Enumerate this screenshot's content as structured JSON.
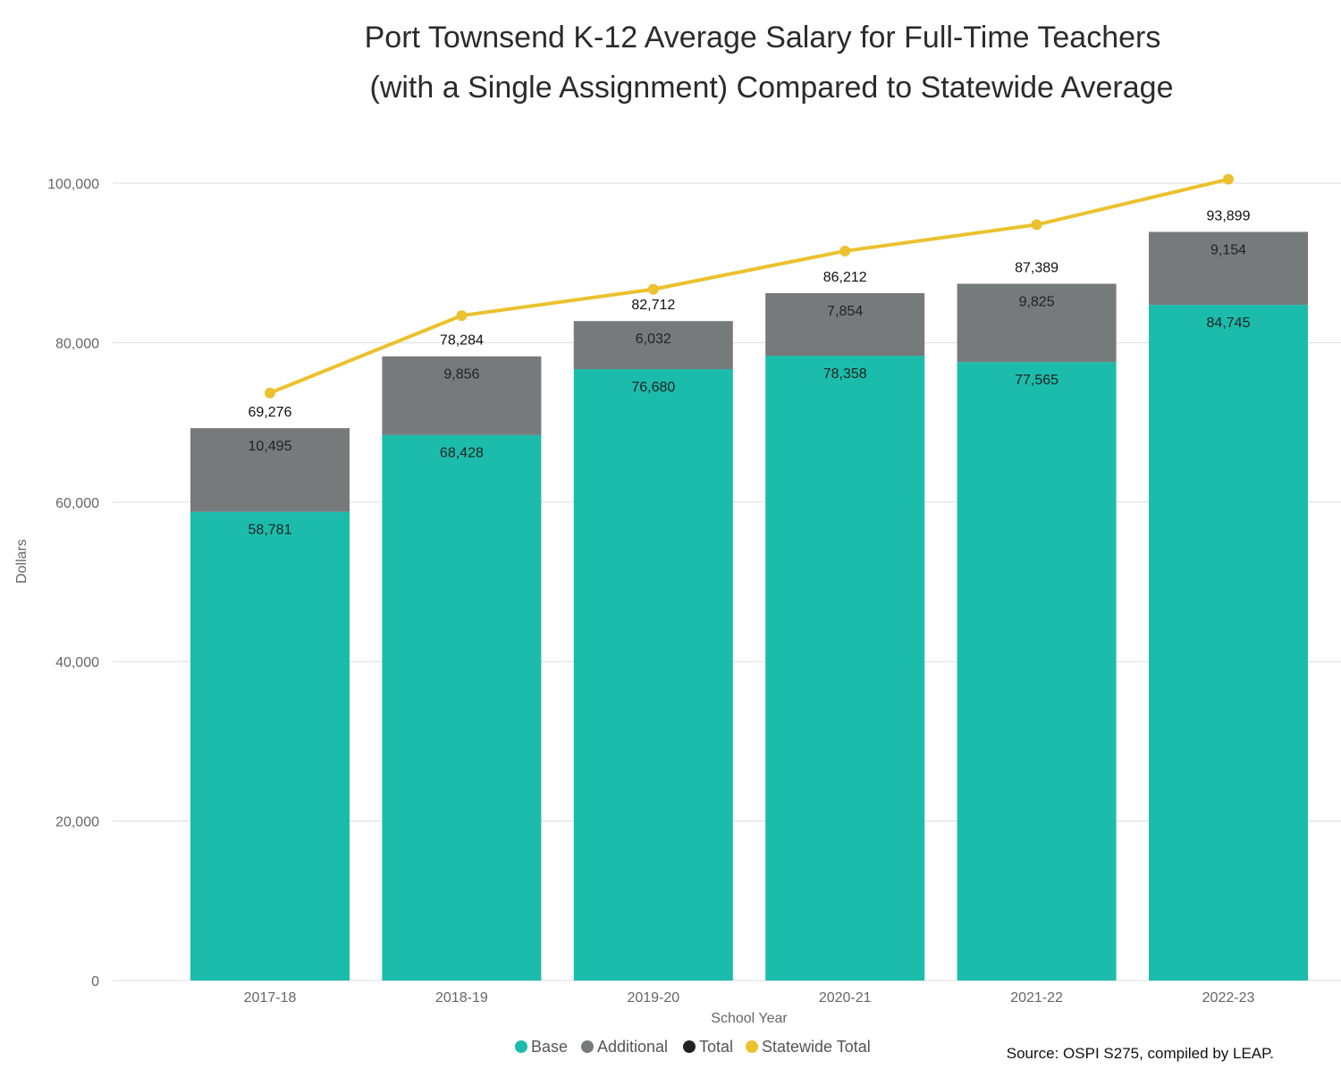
{
  "chart_data": {
    "type": "bar",
    "stacked": true,
    "title_line1": "Port Townsend K-12 Average Salary for Full-Time Teachers",
    "title_line2": "(with a Single Assignment) Compared to Statewide Average",
    "xlabel": "School Year",
    "ylabel": "Dollars",
    "ylim": [
      0,
      100000
    ],
    "yticks": [
      0,
      20000,
      40000,
      60000,
      80000,
      100000
    ],
    "ytick_labels": [
      "0",
      "20,000",
      "40,000",
      "60,000",
      "80,000",
      "100,000"
    ],
    "grid": true,
    "categories": [
      "2017-18",
      "2018-19",
      "2019-20",
      "2020-21",
      "2021-22",
      "2022-23"
    ],
    "series": [
      {
        "name": "Base",
        "kind": "bar",
        "color": "#1bbcab",
        "values": [
          58781,
          68428,
          76680,
          78358,
          77565,
          84745
        ],
        "labels": [
          "58,781",
          "68,428",
          "76,680",
          "78,358",
          "77,565",
          "84,745"
        ]
      },
      {
        "name": "Additional",
        "kind": "bar",
        "color": "#767a7b",
        "values": [
          10495,
          9856,
          6032,
          7854,
          9825,
          9154
        ],
        "labels": [
          "10,495",
          "9,856",
          "6,032",
          "7,854",
          "9,825",
          "9,154"
        ]
      },
      {
        "name": "Total",
        "kind": "label",
        "color": "#222222",
        "values": [
          69276,
          78284,
          82712,
          86212,
          87389,
          93899
        ],
        "labels": [
          "69,276",
          "78,284",
          "82,712",
          "86,212",
          "87,389",
          "93,899"
        ]
      },
      {
        "name": "Statewide Total",
        "kind": "line",
        "color": "#ecc12e",
        "values": [
          73700,
          83400,
          86700,
          91500,
          94800,
          100500
        ]
      }
    ],
    "legend_position": "bottom",
    "source": "Source: OSPI S275, compiled by LEAP."
  }
}
